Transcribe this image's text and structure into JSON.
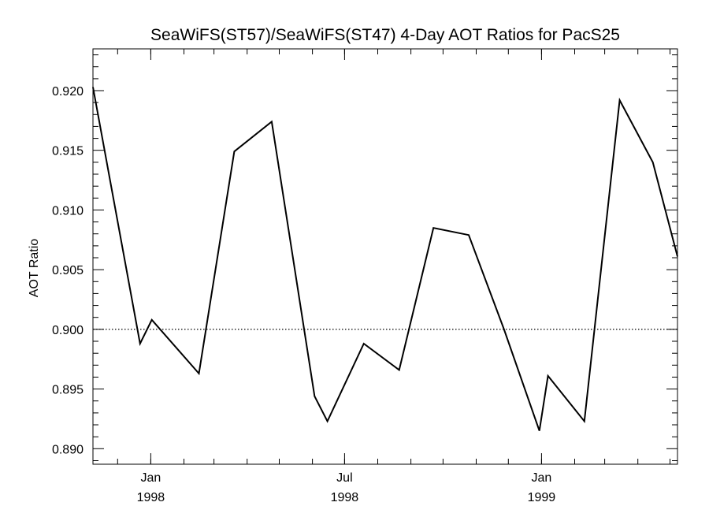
{
  "chart_data": {
    "type": "line",
    "title": "SeaWiFS(ST57)/SeaWiFS(ST47) 4-Day AOT Ratios for PacS25",
    "xlabel": "",
    "ylabel": "AOT Ratio",
    "xlim": [
      "1997-11-08",
      "1999-05-08"
    ],
    "ylim": [
      0.8887,
      0.9235
    ],
    "yticks": [
      0.89,
      0.895,
      0.9,
      0.905,
      0.91,
      0.915,
      0.92
    ],
    "ytick_labels": [
      "0.890",
      "0.895",
      "0.900",
      "0.905",
      "0.910",
      "0.915",
      "0.920"
    ],
    "xticks": [
      {
        "date": "1998-01-01",
        "line1": "Jan",
        "line2": "1998"
      },
      {
        "date": "1998-07-01",
        "line1": "Jul",
        "line2": "1998"
      },
      {
        "date": "1999-01-01",
        "line1": "Jan",
        "line2": "1999"
      }
    ],
    "reference_line": {
      "y": 0.9,
      "style": "dotted"
    },
    "grid": false,
    "series": [
      {
        "x": [
          "1997-11-08",
          "1997-12-22",
          "1998-01-02",
          "1998-02-15",
          "1998-03-20",
          "1998-04-24",
          "1998-06-03",
          "1998-06-15",
          "1998-07-19",
          "1998-08-21",
          "1998-09-22",
          "1998-10-25",
          "1998-11-27",
          "1998-12-30",
          "1999-01-07",
          "1999-02-10",
          "1999-03-15",
          "1999-04-15",
          "1999-05-08"
        ],
        "y": [
          0.9203,
          0.8988,
          0.9008,
          0.8963,
          0.9149,
          0.9174,
          0.8944,
          0.8923,
          0.8988,
          0.8966,
          0.9085,
          0.9079,
          0.9,
          0.8915,
          0.8961,
          0.8923,
          0.9192,
          0.914,
          0.9061
        ]
      }
    ]
  }
}
